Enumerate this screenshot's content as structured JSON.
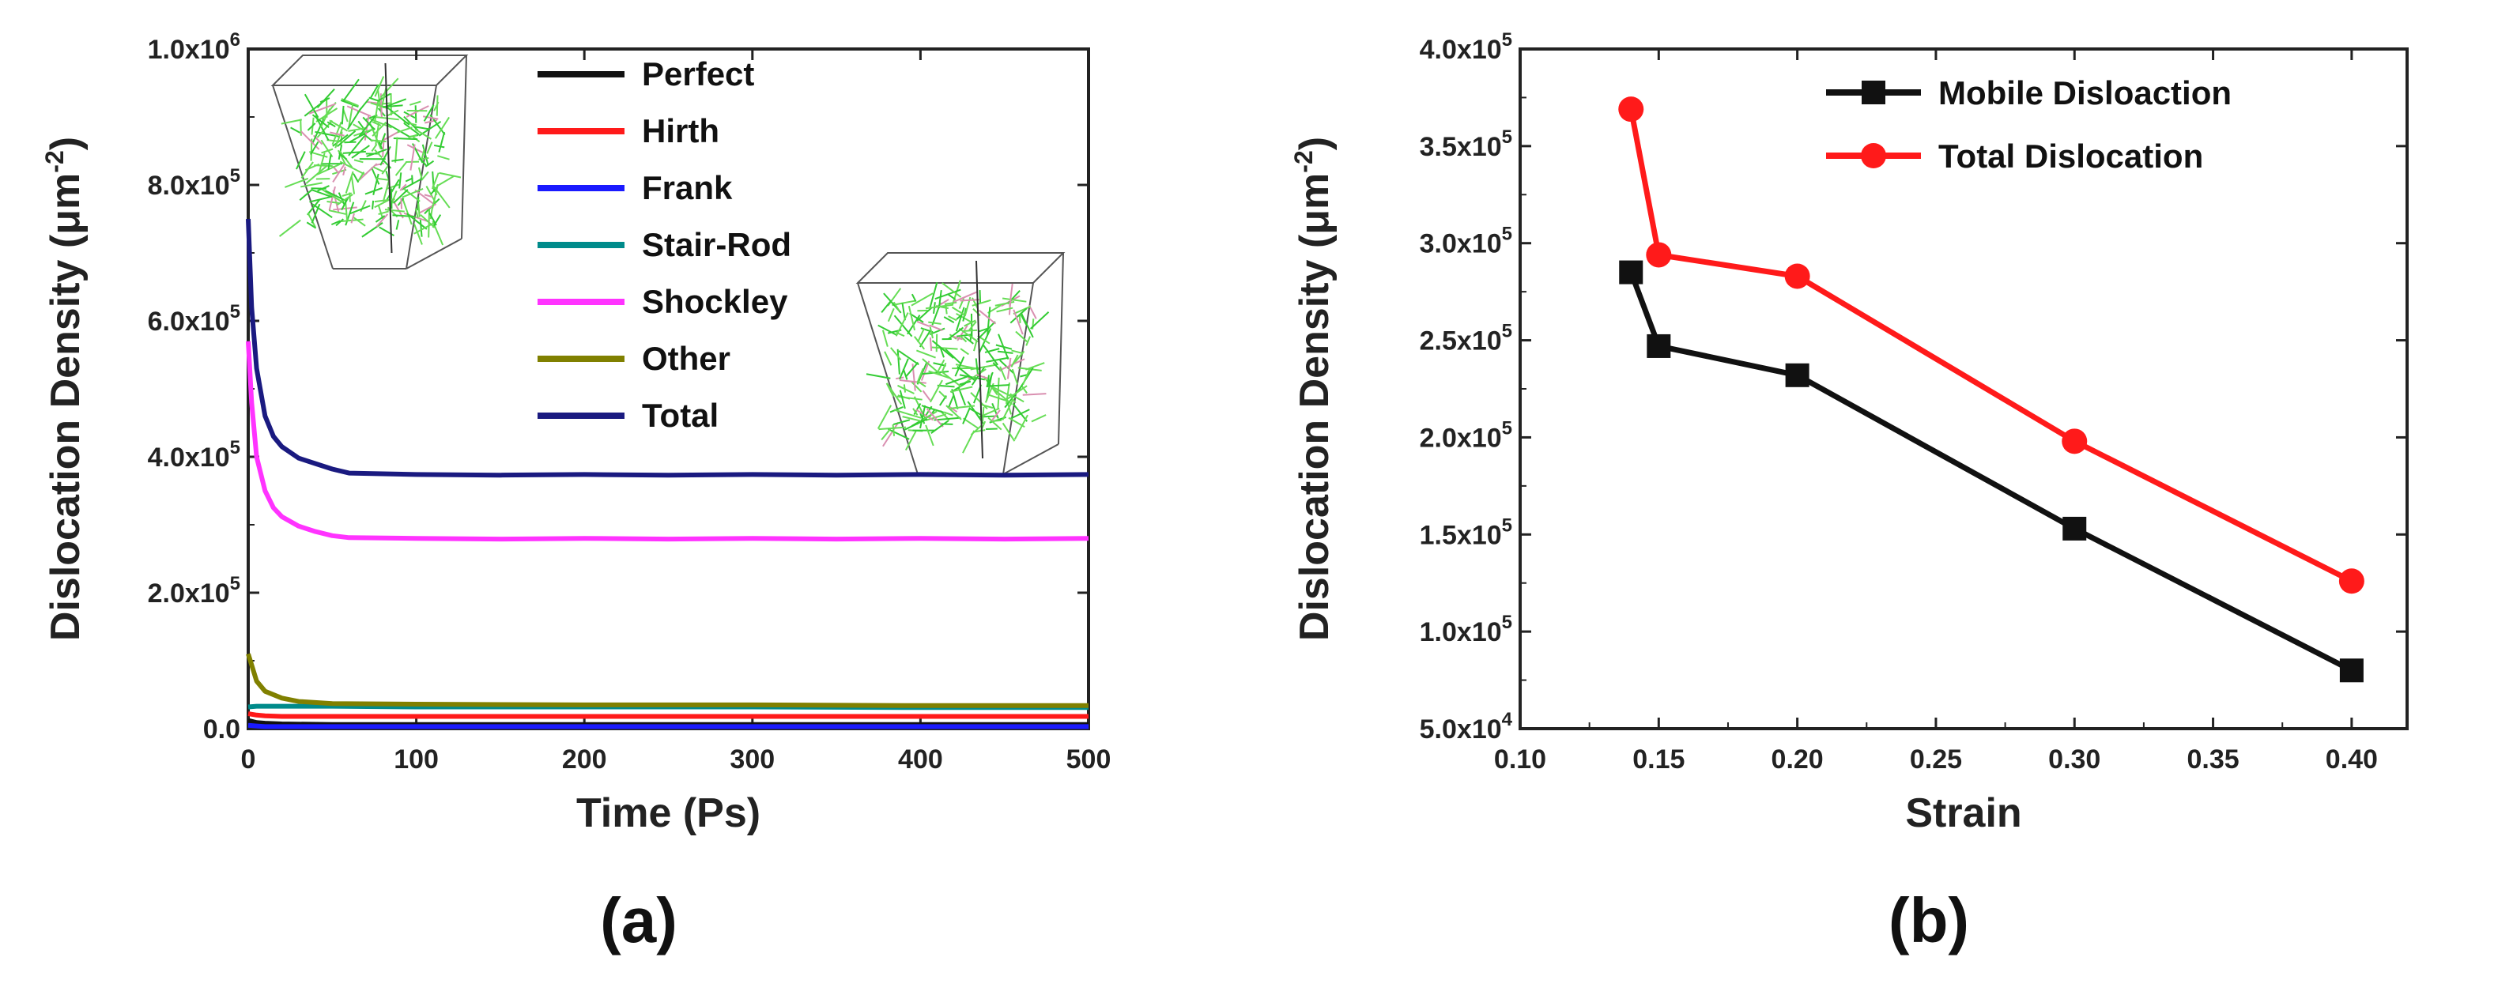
{
  "chart_data": [
    {
      "type": "line",
      "panel_label": "(a)",
      "xlabel": "Time (Ps)",
      "ylabel": "Dislocation Density (μm",
      "ylabel_sup": "-2",
      "ylabel_close": ")",
      "xlim": [
        0,
        500
      ],
      "ylim": [
        0,
        1000000
      ],
      "x_ticks": [
        0,
        100,
        200,
        300,
        400,
        500
      ],
      "y_tick_labels": [
        {
          "value": 0,
          "mantissa": "0.0",
          "exp": ""
        },
        {
          "value": 200000,
          "mantissa": "2.0x10",
          "exp": "5"
        },
        {
          "value": 400000,
          "mantissa": "4.0x10",
          "exp": "5"
        },
        {
          "value": 600000,
          "mantissa": "6.0x10",
          "exp": "5"
        },
        {
          "value": 800000,
          "mantissa": "8.0x10",
          "exp": "5"
        },
        {
          "value": 1000000,
          "mantissa": "1.0x10",
          "exp": "6"
        }
      ],
      "legend_position": "top-right",
      "series": [
        {
          "name": "Perfect",
          "color": "#111111",
          "x": [
            0,
            5,
            10,
            20,
            50,
            100,
            200,
            300,
            400,
            500
          ],
          "values": [
            12000,
            9000,
            8000,
            7000,
            6000,
            6000,
            6000,
            6000,
            6000,
            6000
          ]
        },
        {
          "name": "Hirth",
          "color": "#ff1a1a",
          "x": [
            0,
            5,
            10,
            20,
            50,
            100,
            200,
            300,
            400,
            500
          ],
          "values": [
            22000,
            20000,
            19000,
            18000,
            18000,
            18000,
            18000,
            18000,
            18000,
            18000
          ]
        },
        {
          "name": "Frank",
          "color": "#1a1aff",
          "x": [
            0,
            5,
            10,
            20,
            50,
            100,
            200,
            300,
            400,
            500
          ],
          "values": [
            5000,
            4000,
            3000,
            3000,
            3000,
            3000,
            3000,
            3000,
            3000,
            3000
          ]
        },
        {
          "name": "Stair-Rod",
          "color": "#008b8b",
          "x": [
            0,
            5,
            10,
            20,
            50,
            100,
            200,
            300,
            400,
            500
          ],
          "values": [
            32000,
            33000,
            33000,
            33000,
            33000,
            32000,
            32000,
            32000,
            31000,
            31000
          ]
        },
        {
          "name": "Shockley",
          "color": "#ff33ff",
          "x": [
            0,
            2,
            5,
            10,
            15,
            20,
            30,
            40,
            50,
            60,
            100,
            150,
            200,
            250,
            300,
            350,
            400,
            450,
            500
          ],
          "values": [
            570000,
            480000,
            400000,
            350000,
            325000,
            312000,
            298000,
            290000,
            284000,
            281000,
            280000,
            279000,
            280000,
            279000,
            280000,
            279000,
            280000,
            279000,
            280000
          ]
        },
        {
          "name": "Other",
          "color": "#808000",
          "x": [
            0,
            5,
            10,
            20,
            30,
            50,
            100,
            200,
            300,
            400,
            500
          ],
          "values": [
            110000,
            70000,
            55000,
            45000,
            40000,
            37000,
            36000,
            35000,
            35000,
            34000,
            34000
          ]
        },
        {
          "name": "Total",
          "color": "#1a1a80",
          "x": [
            0,
            2,
            5,
            10,
            15,
            20,
            30,
            40,
            50,
            60,
            100,
            150,
            200,
            250,
            300,
            350,
            400,
            450,
            500
          ],
          "values": [
            750000,
            620000,
            530000,
            460000,
            430000,
            415000,
            398000,
            390000,
            382000,
            376000,
            374000,
            373000,
            374000,
            373000,
            374000,
            373000,
            374000,
            373000,
            374000
          ]
        }
      ],
      "insets": [
        "dislocation-network-before",
        "dislocation-network-after"
      ]
    },
    {
      "type": "line",
      "panel_label": "(b)",
      "xlabel": "Strain",
      "ylabel": "Dislocation Density (μm",
      "ylabel_sup": "-2",
      "ylabel_close": ")",
      "xlim": [
        0.1,
        0.42
      ],
      "ylim": [
        50000,
        400000
      ],
      "x_tick_labels": [
        "0.10",
        "0.15",
        "0.20",
        "0.25",
        "0.30",
        "0.35",
        "0.40"
      ],
      "x_ticks": [
        0.1,
        0.15,
        0.2,
        0.25,
        0.3,
        0.35,
        0.4
      ],
      "y_tick_labels": [
        {
          "value": 50000,
          "mantissa": "5.0x10",
          "exp": "4"
        },
        {
          "value": 100000,
          "mantissa": "1.0x10",
          "exp": "5"
        },
        {
          "value": 150000,
          "mantissa": "1.5x10",
          "exp": "5"
        },
        {
          "value": 200000,
          "mantissa": "2.0x10",
          "exp": "5"
        },
        {
          "value": 250000,
          "mantissa": "2.5x10",
          "exp": "5"
        },
        {
          "value": 300000,
          "mantissa": "3.0x10",
          "exp": "5"
        },
        {
          "value": 350000,
          "mantissa": "3.5x10",
          "exp": "5"
        },
        {
          "value": 400000,
          "mantissa": "4.0x10",
          "exp": "5"
        }
      ],
      "legend_position": "top-right",
      "series": [
        {
          "name": "Mobile Disloaction",
          "color": "#111111",
          "marker": "square",
          "x": [
            0.14,
            0.15,
            0.2,
            0.3,
            0.4
          ],
          "values": [
            285000,
            247000,
            232000,
            153000,
            80000
          ]
        },
        {
          "name": "Total Dislocation",
          "color": "#ff1a1a",
          "marker": "circle",
          "x": [
            0.14,
            0.15,
            0.2,
            0.3,
            0.4
          ],
          "values": [
            369000,
            294000,
            283000,
            198000,
            126000
          ]
        }
      ]
    }
  ]
}
